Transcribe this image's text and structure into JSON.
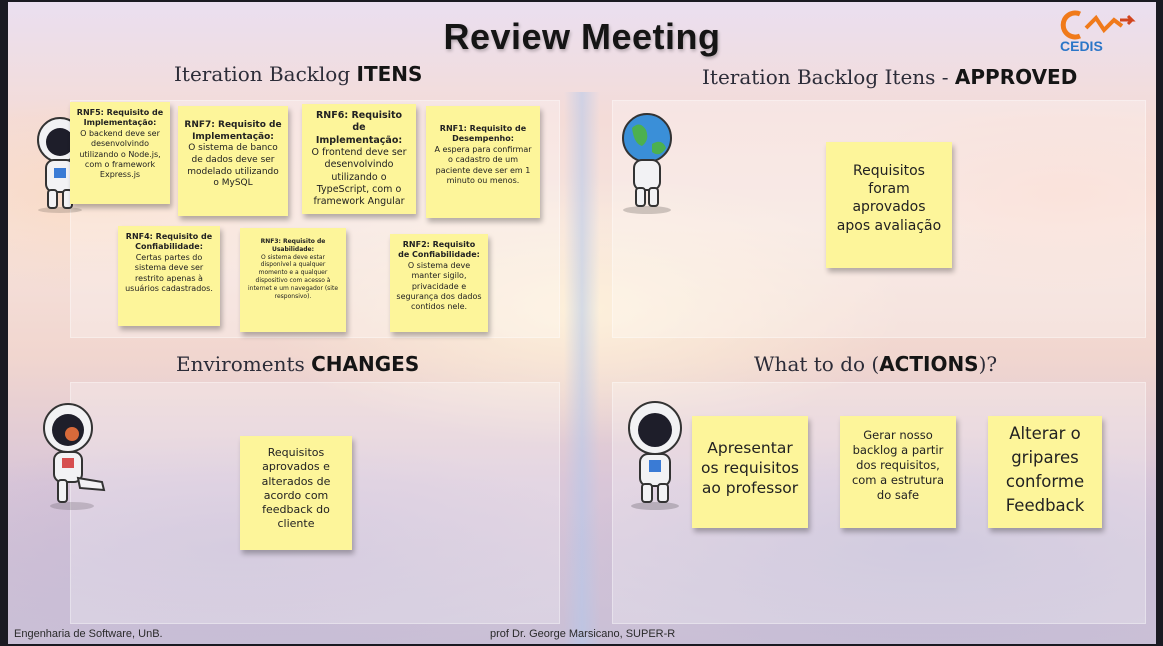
{
  "title": "Review Meeting",
  "logo": {
    "name": "CEDIS",
    "icon": "cedis-logo-icon"
  },
  "sections": {
    "backlog": {
      "heading_normal": "Iteration Backlog ",
      "heading_bold": "ITENS"
    },
    "approved": {
      "heading_normal": "Iteration Backlog Itens - ",
      "heading_bold": "APPROVED"
    },
    "changes": {
      "heading_normal": "Enviroments ",
      "heading_bold": "CHANGES"
    },
    "actions": {
      "heading_normal": "What to do (",
      "heading_bold": "ACTIONS",
      "heading_tail": ")?"
    }
  },
  "notes": {
    "rnf5": {
      "title": "RNF5: Requisito de Implementação:",
      "text": "O backend deve ser desenvolvindo utilizando o Node.js, com o framework Express.js"
    },
    "rnf7": {
      "title": "RNF7: Requisito de Implementação:",
      "text": "O sistema de banco de dados deve ser modelado utilizando o MySQL"
    },
    "rnf6": {
      "title": "RNF6: Requisito de Implementação:",
      "text": "O frontend deve ser desenvolvindo utilizando o TypeScript, com o framework Angular"
    },
    "rnf1": {
      "title": "RNF1: Requisito de Desempenho:",
      "text": "A espera para confirmar o cadastro de um paciente deve ser em 1 minuto ou menos."
    },
    "rnf4": {
      "title": "RNF4: Requisito de Confiabilidade:",
      "text": "Certas partes do sistema deve ser restrito apenas à usuários cadastrados."
    },
    "rnf3": {
      "title": "RNF3: Requisito de Usabilidade:",
      "text": "O sistema deve estar disponível a qualquer momento e a qualquer dispositivo com acesso à internet e um navegador (site responsivo)."
    },
    "rnf2": {
      "title": "RNF2: Requisito de Confiabilidade:",
      "text": "O sistema deve manter sigilo, privacidade e segurança dos dados contidos nele."
    },
    "approved": {
      "text": "Requisitos foram aprovados apos avaliação"
    },
    "changes": {
      "text": "Requisitos aprovados e alterados de acordo com feedback do cliente"
    },
    "action1": {
      "text": "Apresentar os requisitos ao professor"
    },
    "action2": {
      "text": "Gerar nosso backlog a partir dos requisitos, com a estrutura do safe"
    },
    "action3": {
      "text": "Alterar o gripares conforme Feedback"
    }
  },
  "footer": {
    "left": "Engenharia de Software, UnB.",
    "center": "prof Dr. George Marsicano, SUPER-R"
  },
  "colors": {
    "note": "#fdf59a",
    "logo": "#2b76c8",
    "logo_accent": "#f07a1a"
  }
}
